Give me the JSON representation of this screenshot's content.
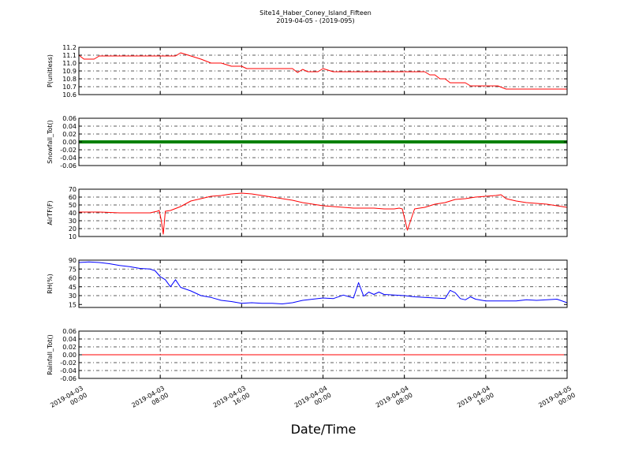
{
  "figure": {
    "title": "Site14_Haber_Coney_Island_Fifteen",
    "subtitle": "2019-04-05 - (2019-095)",
    "xlabel": "Date/Time"
  },
  "chart_data": [
    {
      "type": "line",
      "ylabel": "P(unitless)",
      "ylim": [
        10.6,
        11.2
      ],
      "yticks": [
        "10.6",
        "10.7",
        "10.8",
        "10.9",
        "11.0",
        "11.1",
        "11.2"
      ],
      "xlim": [
        "2019-04-03 00:00",
        "2019-04-05 00:00"
      ],
      "grid": true,
      "series": [
        {
          "color": "#ff0000",
          "x": [
            0,
            0.5,
            1,
            1.5,
            2,
            2.5,
            3,
            4,
            5,
            6,
            7,
            7.5,
            8,
            9,
            9.5,
            10,
            11,
            12,
            13,
            14,
            15,
            16,
            16.5,
            17,
            18,
            19,
            20,
            21,
            21.5,
            22,
            22.5,
            23,
            23.5,
            24,
            25,
            26,
            27,
            28,
            29,
            30,
            31,
            32,
            32.3,
            33,
            34,
            34.5,
            35,
            35.5,
            36,
            36.5,
            37,
            38,
            38.5,
            39,
            40,
            41,
            41.2,
            42,
            43,
            44,
            45,
            46,
            47,
            48
          ],
          "y": [
            11.1,
            11.05,
            11.05,
            11.05,
            11.09,
            11.09,
            11.09,
            11.09,
            11.09,
            11.09,
            11.09,
            11.09,
            11.09,
            11.09,
            11.09,
            11.13,
            11.09,
            11.05,
            11.0,
            11.0,
            10.96,
            10.96,
            10.93,
            10.93,
            10.93,
            10.93,
            10.93,
            10.93,
            10.88,
            10.92,
            10.89,
            10.89,
            10.89,
            10.93,
            10.89,
            10.89,
            10.89,
            10.89,
            10.89,
            10.89,
            10.89,
            10.89,
            10.89,
            10.89,
            10.89,
            10.85,
            10.85,
            10.8,
            10.8,
            10.75,
            10.75,
            10.75,
            10.71,
            10.71,
            10.71,
            10.71,
            10.71,
            10.67,
            10.67,
            10.67,
            10.67,
            10.67,
            10.67,
            10.67
          ]
        }
      ]
    },
    {
      "type": "line",
      "ylabel": "Snowfall_Tot()",
      "ylim": [
        -0.06,
        0.06
      ],
      "yticks": [
        "-0.06",
        "-0.04",
        "-0.02",
        "0.00",
        "0.02",
        "0.04",
        "0.06"
      ],
      "xlim": [
        "2019-04-03 00:00",
        "2019-04-05 00:00"
      ],
      "grid": true,
      "series": [
        {
          "color": "#008000",
          "width": 4,
          "x": [
            0,
            48
          ],
          "y": [
            0,
            0
          ]
        }
      ]
    },
    {
      "type": "line",
      "ylabel": "AirTF(F)",
      "ylim": [
        10,
        70
      ],
      "yticks": [
        "10",
        "20",
        "30",
        "40",
        "50",
        "60",
        "70"
      ],
      "xlim": [
        "2019-04-03 00:00",
        "2019-04-05 00:00"
      ],
      "grid": true,
      "series": [
        {
          "color": "#ff0000",
          "x": [
            0,
            2,
            4,
            6,
            7,
            7.7,
            7.9,
            8.1,
            8.3,
            8.5,
            9,
            10,
            11,
            12,
            13,
            14,
            15,
            16,
            17,
            18,
            19,
            20,
            21,
            22,
            23,
            24,
            25,
            26,
            27,
            28,
            29,
            30,
            31,
            31.5,
            31.8,
            32,
            32.3,
            33,
            34,
            35,
            36,
            36.5,
            37,
            38,
            39,
            40,
            41,
            41.5,
            42,
            43,
            44,
            45,
            46,
            47,
            48
          ],
          "y": [
            41,
            41,
            40,
            40,
            40,
            42,
            43,
            30,
            13,
            42,
            43,
            48,
            55,
            58,
            61,
            62,
            64,
            65,
            64,
            62,
            60,
            58,
            56,
            53,
            51,
            49,
            48,
            47,
            46,
            46,
            46,
            45,
            45,
            46,
            45,
            34,
            18,
            45,
            47,
            51,
            53,
            55,
            57,
            58,
            60,
            61,
            62,
            63,
            58,
            55,
            53,
            52,
            51,
            49,
            47
          ]
        }
      ]
    },
    {
      "type": "line",
      "ylabel": "RH(%)",
      "ylim": [
        10,
        90
      ],
      "yticks": [
        "15",
        "30",
        "45",
        "60",
        "75",
        "90"
      ],
      "xlim": [
        "2019-04-03 00:00",
        "2019-04-05 00:00"
      ],
      "grid": true,
      "series": [
        {
          "color": "#0000ff",
          "x": [
            0,
            1,
            2,
            3,
            4,
            5,
            6,
            7,
            7.5,
            8,
            8.5,
            9,
            9.5,
            10,
            11,
            12,
            13,
            14,
            15,
            16,
            17,
            18,
            19,
            20,
            21,
            22,
            23,
            24,
            25,
            26,
            27,
            27.5,
            28,
            28.5,
            29,
            29.5,
            30,
            31,
            32,
            33,
            34,
            35,
            36,
            36.5,
            37,
            37.5,
            38,
            38.5,
            39,
            40,
            41,
            42,
            43,
            44,
            45,
            46,
            47,
            48
          ],
          "y": [
            86,
            87,
            86,
            84,
            81,
            79,
            76,
            75,
            72,
            62,
            57,
            45,
            57,
            44,
            38,
            30,
            27,
            22,
            20,
            17,
            18,
            17,
            17,
            16,
            18,
            22,
            24,
            26,
            25,
            31,
            26,
            52,
            29,
            36,
            32,
            36,
            32,
            31,
            30,
            28,
            27,
            26,
            25,
            39,
            35,
            25,
            23,
            28,
            24,
            21,
            21,
            21,
            21,
            23,
            22,
            23,
            24,
            18
          ]
        }
      ]
    },
    {
      "type": "line",
      "ylabel": "Rainfall_Tot()",
      "ylim": [
        -0.06,
        0.06
      ],
      "yticks": [
        "-0.06",
        "-0.04",
        "-0.02",
        "0.00",
        "0.02",
        "0.04",
        "0.06"
      ],
      "xlim": [
        "2019-04-03 00:00",
        "2019-04-05 00:00"
      ],
      "grid": true,
      "series": [
        {
          "color": "#ff0000",
          "width": 1,
          "x": [
            0,
            48
          ],
          "y": [
            0,
            0
          ]
        }
      ]
    }
  ],
  "x_axis": {
    "ticks": [
      {
        "hours": 0,
        "line1": "2019-04-03",
        "line2": "00:00"
      },
      {
        "hours": 8,
        "line1": "2019-04-03",
        "line2": "08:00"
      },
      {
        "hours": 16,
        "line1": "2019-04-03",
        "line2": "16:00"
      },
      {
        "hours": 24,
        "line1": "2019-04-04",
        "line2": "00:00"
      },
      {
        "hours": 32,
        "line1": "2019-04-04",
        "line2": "08:00"
      },
      {
        "hours": 40,
        "line1": "2019-04-04",
        "line2": "16:00"
      },
      {
        "hours": 48,
        "line1": "2019-04-05",
        "line2": "00:00"
      }
    ]
  }
}
